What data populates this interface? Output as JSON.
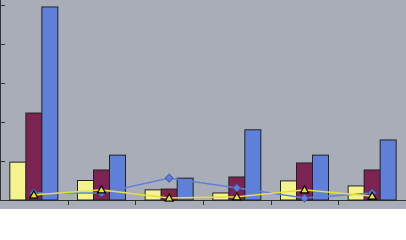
{
  "chart_data": {
    "type": "bar",
    "categories": [
      null,
      null,
      null,
      null,
      null,
      null
    ],
    "ylim": [
      0,
      5
    ],
    "yticks": [
      0,
      1,
      2,
      3,
      4,
      5
    ],
    "grid": false,
    "series": [
      {
        "type": "bar",
        "color": "#f4f48e",
        "values": [
          0.97,
          0.5,
          0.26,
          0.18,
          0.49,
          0.36
        ]
      },
      {
        "type": "bar",
        "color": "#7c2352",
        "values": [
          2.23,
          0.77,
          0.28,
          0.59,
          0.95,
          0.77
        ]
      },
      {
        "type": "bar",
        "color": "#5f80d8",
        "values": [
          4.95,
          1.15,
          0.56,
          1.8,
          1.15,
          1.54
        ]
      },
      {
        "type": "line",
        "marker": "diamond",
        "color": "#5f80d8",
        "values": [
          0.18,
          0.18,
          0.56,
          0.31,
          0.05,
          0.18
        ]
      },
      {
        "type": "line",
        "marker": "triangle",
        "color": "#e6df3c",
        "values": [
          0.13,
          0.26,
          0.05,
          0.08,
          0.26,
          0.1
        ]
      }
    ]
  }
}
